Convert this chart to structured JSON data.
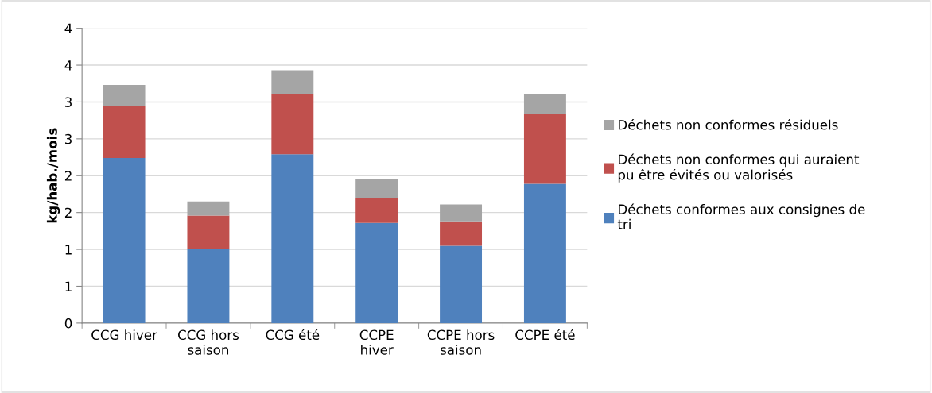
{
  "chart_data": {
    "type": "bar",
    "stacked": true,
    "ylabel": "kg/hab./mois",
    "categories": [
      "CCG hiver",
      "CCG hors\nsaison",
      "CCG été",
      "CCPE\nhiver",
      "CCPE hors\nsaison",
      "CCPE été"
    ],
    "series": [
      {
        "name": "Déchets conformes aux consignes de\ntri",
        "color": "#4f81bd",
        "values": [
          2.24,
          1.0,
          2.29,
          1.36,
          1.05,
          1.89
        ]
      },
      {
        "name": "Déchets non conformes qui auraient\npu être évités ou valorisés",
        "color": "#c0504d",
        "values": [
          0.71,
          0.46,
          0.82,
          0.34,
          0.33,
          0.95
        ]
      },
      {
        "name": "Déchets non conformes résiduels",
        "color": "#a5a5a5",
        "values": [
          0.28,
          0.19,
          0.32,
          0.26,
          0.23,
          0.27
        ]
      }
    ],
    "ylim": [
      0,
      4
    ],
    "yticks": [
      0,
      {
        "value": 0.5,
        "label": "1"
      },
      {
        "value": 1,
        "label": "1"
      },
      {
        "value": 1.5,
        "label": "2"
      },
      {
        "value": 2,
        "label": "2"
      },
      {
        "value": 2.5,
        "label": "3"
      },
      {
        "value": 3,
        "label": "3"
      },
      {
        "value": 3.5,
        "label": "4"
      },
      4
    ],
    "grid": "y",
    "legend": "right"
  }
}
